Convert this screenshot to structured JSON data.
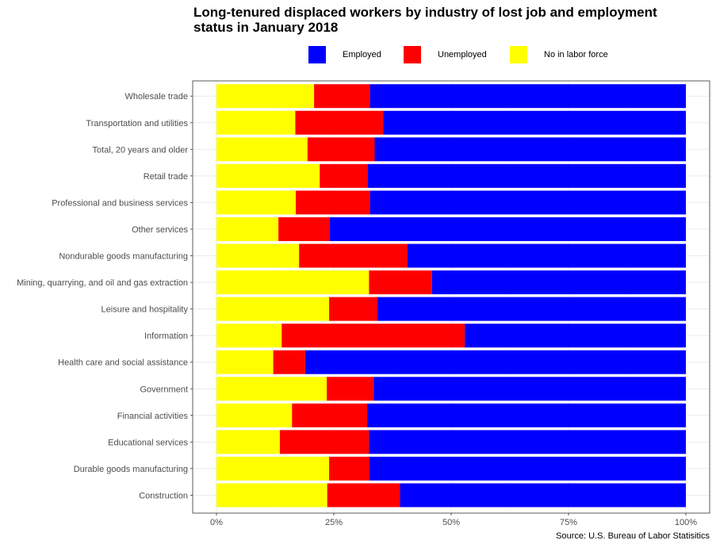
{
  "chart_data": {
    "type": "bar",
    "orientation": "horizontal",
    "stacked": true,
    "title_lines": [
      "Long-tenured displaced workers by industry of lost job and employment",
      "status in January 2018"
    ],
    "caption": "Source: U.S. Bureau of Labor Statisitics",
    "legend_position": "top",
    "grid": true,
    "xlim": [
      0,
      100
    ],
    "x_ticks": [
      {
        "value": 0,
        "label": "0%"
      },
      {
        "value": 25,
        "label": "25%"
      },
      {
        "value": 50,
        "label": "50%"
      },
      {
        "value": 75,
        "label": "75%"
      },
      {
        "value": 100,
        "label": "100%"
      }
    ],
    "categories": [
      "Wholesale trade",
      "Transportation and utilities",
      "Total, 20 years and older",
      "Retail trade",
      "Professional and business services",
      "Other services",
      "Nondurable goods manufacturing",
      "Mining, quarrying, and oil and gas extraction",
      "Leisure and hospitality",
      "Information",
      "Health care and social assistance",
      "Government",
      "Financial activities",
      "Educational services",
      "Durable goods manufacturing",
      "Construction"
    ],
    "series": [
      {
        "name": "No in labor force",
        "color": "#FFFF00",
        "values": [
          20.8,
          16.8,
          19.4,
          22.0,
          16.9,
          13.2,
          17.6,
          32.5,
          24.0,
          13.9,
          12.1,
          23.5,
          16.1,
          13.5,
          24.0,
          23.6
        ]
      },
      {
        "name": "Unemployed",
        "color": "#FF0000",
        "values": [
          11.9,
          18.7,
          14.3,
          10.2,
          15.8,
          10.9,
          23.1,
          13.4,
          10.3,
          39.0,
          6.8,
          10.0,
          16.0,
          19.0,
          8.6,
          15.5
        ]
      },
      {
        "name": "Employed",
        "color": "#0000FF",
        "values": [
          67.3,
          64.5,
          66.3,
          67.8,
          67.3,
          75.9,
          59.3,
          54.1,
          65.7,
          47.1,
          81.1,
          66.5,
          67.9,
          67.5,
          67.4,
          60.9
        ]
      }
    ],
    "legend": [
      {
        "label": "Employed",
        "color": "#0000FF"
      },
      {
        "label": "Unemployed",
        "color": "#FF0000"
      },
      {
        "label": "No in labor force",
        "color": "#FFFF00"
      }
    ]
  }
}
